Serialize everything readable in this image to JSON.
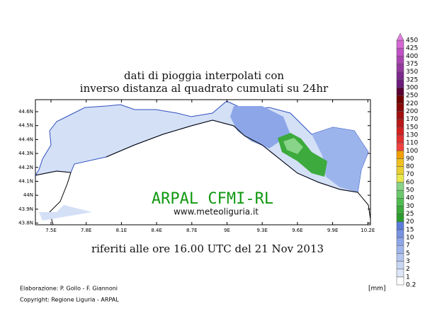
{
  "title": {
    "line1": "dati di pioggia interpolati con",
    "line2": "inverso distanza al quadrato cumulati su 24hr"
  },
  "subtitle": "riferiti alle ore 16.00 UTC del 21 Nov 2013",
  "brand": {
    "name": "ARPAL CFMI-RL",
    "url": "www.meteoliguria.it"
  },
  "credits": {
    "elaboration": "Elaborazione: P. Gollo - F. Giannoni",
    "copyright": "Copyright: Regione Liguria - ARPAL"
  },
  "map": {
    "lat_labels": [
      "44.6N",
      "44.5N",
      "44.4N",
      "44.3N",
      "44.2N",
      "44.1N",
      "44N",
      "43.9N",
      "43.8N"
    ],
    "lon_labels": [
      "7.5E",
      "7.8E",
      "8.1E",
      "8.4E",
      "8.7E",
      "9E",
      "9.3E",
      "9.6E",
      "9.9E",
      "10.2E"
    ]
  },
  "legend": {
    "unit": "[mm]",
    "levels": [
      "0.2",
      "1",
      "2",
      "3",
      "5",
      "7",
      "10",
      "15",
      "20",
      "25",
      "30",
      "40",
      "50",
      "60",
      "70",
      "80",
      "90",
      "100",
      "110",
      "130",
      "150",
      "170",
      "200",
      "220",
      "250",
      "300",
      "325",
      "350",
      "375",
      "400",
      "425",
      "450"
    ],
    "colors": [
      "#ffffff",
      "#dce6f8",
      "#c8d6f4",
      "#b4c6f0",
      "#a0b6ec",
      "#8ca6e8",
      "#7892e2",
      "#5c7cda",
      "#2c9c2c",
      "#3caa3c",
      "#50bc50",
      "#6cc86c",
      "#88d488",
      "#e8e84c",
      "#e8d030",
      "#f0c020",
      "#f0a000",
      "#f04040",
      "#e03030",
      "#d02020",
      "#b81818",
      "#a01010",
      "#880808",
      "#700000",
      "#5a0030",
      "#6a1a7a",
      "#7a2a8a",
      "#9438a0",
      "#aa44b0",
      "#c050c4",
      "#d468d4"
    ],
    "top_color": "#e080e0"
  }
}
